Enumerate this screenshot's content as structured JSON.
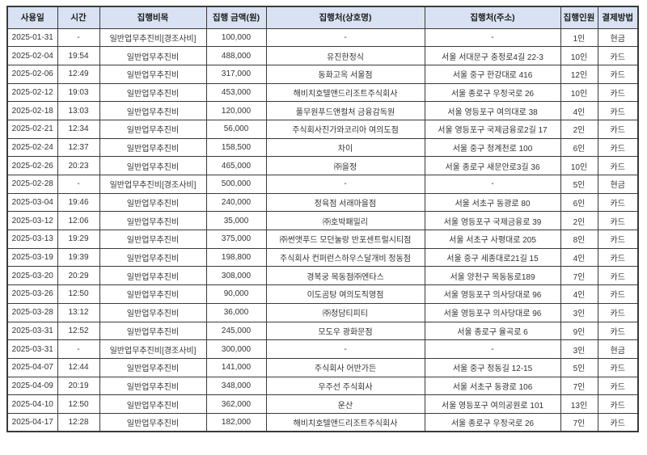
{
  "page": {
    "background": "#ffffff",
    "header_bg": "#d9e2f3",
    "border_color": "#3a3a3a",
    "text_color": "#333333"
  },
  "table": {
    "columns": [
      {
        "key": "use_date",
        "label": "사용일"
      },
      {
        "key": "time",
        "label": "시간"
      },
      {
        "key": "category",
        "label": "집행비목"
      },
      {
        "key": "amount",
        "label": "집행 금액(원)"
      },
      {
        "key": "vendor",
        "label": "집행처(상호명)"
      },
      {
        "key": "address",
        "label": "집행처(주소)"
      },
      {
        "key": "people",
        "label": "집행인원"
      },
      {
        "key": "payment",
        "label": "결제방법"
      }
    ],
    "rows": [
      [
        "2025-01-31",
        "-",
        "일반업무추진비[경조사비]",
        "100,000",
        "-",
        "-",
        "1인",
        "현금"
      ],
      [
        "2025-02-04",
        "19:54",
        "일반업무추진비",
        "488,000",
        "유진한정식",
        "서울 서대문구 충정로4길 22-3",
        "10인",
        "카드"
      ],
      [
        "2025-02-06",
        "12:49",
        "일반업무추진비",
        "317,000",
        "동화고옥 서울점",
        "서울 중구 한강대로 416",
        "12인",
        "카드"
      ],
      [
        "2025-02-12",
        "19:03",
        "일반업무추진비",
        "453,000",
        "해비치호텔앤드리조트주식회사",
        "서울 종로구 우정국로 26",
        "10인",
        "카드"
      ],
      [
        "2025-02-18",
        "13:03",
        "일반업무추진비",
        "120,000",
        "풀무원푸드앤컬처 금융감독원",
        "서울 영등포구 여의대로 38",
        "4인",
        "카드"
      ],
      [
        "2025-02-21",
        "12:34",
        "일반업무추진비",
        "56,000",
        "주식회사진가와코리아 여의도점",
        "서울 영등포구 국제금융로2길 17",
        "2인",
        "카드"
      ],
      [
        "2025-02-24",
        "12:37",
        "일반업무추진비",
        "158,500",
        "차이",
        "서울 중구 청계천로 100",
        "6인",
        "카드"
      ],
      [
        "2025-02-26",
        "20:23",
        "일반업무추진비",
        "465,000",
        "㈜을정",
        "서울 종로구 새문안로3길 36",
        "10인",
        "카드"
      ],
      [
        "2025-02-28",
        "-",
        "일반업무추진비[경조사비]",
        "500,000",
        "-",
        "-",
        "5인",
        "현금"
      ],
      [
        "2025-03-04",
        "19:46",
        "일반업무추진비",
        "240,000",
        "정육점 서래마을점",
        "서울 서초구 동광로 80",
        "6인",
        "카드"
      ],
      [
        "2025-03-12",
        "12:06",
        "일반업무추진비",
        "35,000",
        "㈜호박패밀리",
        "서울 영등포구 국제금융로 39",
        "2인",
        "카드"
      ],
      [
        "2025-03-13",
        "19:29",
        "일반업무추진비",
        "375,000",
        "㈜썬앳푸드 모던눌랑 반포센트럴시티점",
        "서울 서초구 사평대로 205",
        "8인",
        "카드"
      ],
      [
        "2025-03-19",
        "19:39",
        "일반업무추진비",
        "198,800",
        "주식회사 컨퍼런스하우스달개비 정동점",
        "서울 중구 세종대로21길 15",
        "4인",
        "카드"
      ],
      [
        "2025-03-20",
        "20:29",
        "일반업무추진비",
        "308,000",
        "경복궁 목동점㈜엔타스",
        "서울 양천구 목동동로189",
        "7인",
        "카드"
      ],
      [
        "2025-03-26",
        "12:50",
        "일반업무추진비",
        "90,000",
        "이도곰탕 여의도직영점",
        "서울 영등포구 의사당대로 96",
        "4인",
        "카드"
      ],
      [
        "2025-03-28",
        "13:12",
        "일반업무추진비",
        "36,000",
        "㈜청담티피티",
        "서울 영등포구 의사당대로 96",
        "3인",
        "카드"
      ],
      [
        "2025-03-31",
        "12:52",
        "일반업무추진비",
        "245,000",
        "모도우 광화문점",
        "서울 종로구 율곡로 6",
        "9인",
        "카드"
      ],
      [
        "2025-03-31",
        "-",
        "일반업무추진비[경조사비]",
        "300,000",
        "-",
        "-",
        "3인",
        "현금"
      ],
      [
        "2025-04-07",
        "12:44",
        "일반업무추진비",
        "141,000",
        "주식회사 어반가든",
        "서울 중구 정동길 12-15",
        "5인",
        "카드"
      ],
      [
        "2025-04-09",
        "20:19",
        "일반업무추진비",
        "348,000",
        "우주선 주식회사",
        "서울 서초구 동광로 106",
        "7인",
        "카드"
      ],
      [
        "2025-04-10",
        "12:50",
        "일반업무추진비",
        "362,000",
        "운산",
        "서울 영등포구 여의공원로 101",
        "13인",
        "카드"
      ],
      [
        "2025-04-17",
        "12:28",
        "일반업무추진비",
        "182,000",
        "해비치호텔앤드리조트주식회사",
        "서울 종로구 우정국로 26",
        "7인",
        "카드"
      ]
    ]
  }
}
